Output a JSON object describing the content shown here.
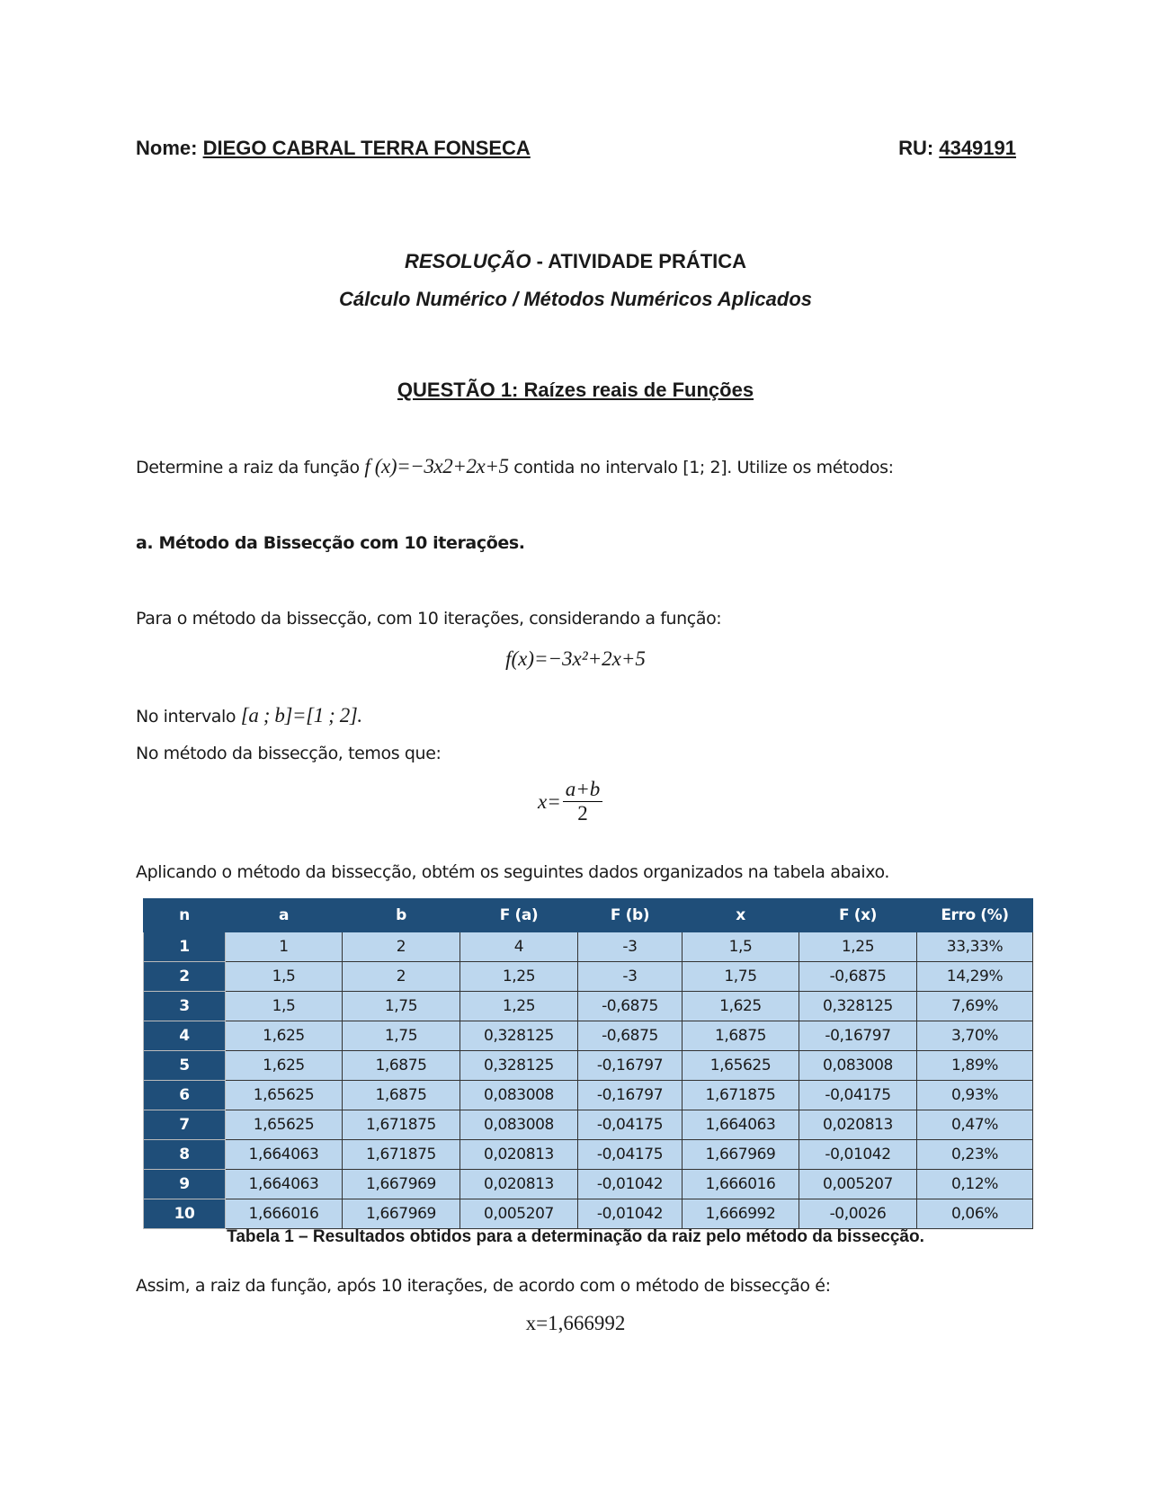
{
  "header": {
    "name_label": "Nome:",
    "name": "DIEGO CABRAL TERRA FONSECA",
    "ru_label": "RU:",
    "ru": "4349191"
  },
  "title": {
    "line1_italic": "RESOLUÇÃO",
    "line1_rest": " - ATIVIDADE PRÁTICA",
    "line2": "Cálculo Numérico / Métodos Numéricos Aplicados"
  },
  "question": "QUESTÃO 1: Raízes reais de Funções",
  "statement": {
    "before": "Determine a raiz da função",
    "formula": "f (x)=−3x2+2x+5",
    "after": "contida no intervalo [1; 2]. Utilize os métodos:"
  },
  "item_a": "a. Método da Bissecção com 10 iterações.",
  "p1": "Para o método da bissecção, com 10 iterações, considerando a função:",
  "formula_f": "f(x)=−3x²+2x+5",
  "p2_text": "No intervalo",
  "p2_math": "[a ; b]=[1 ; 2].",
  "p3": "No método da bissecção, temos que:",
  "formula_x": {
    "lhs": "x=",
    "num": "a+b",
    "den": "2"
  },
  "p4": "Aplicando o método da bissecção, obtém os seguintes dados organizados na tabela abaixo.",
  "table": {
    "headers": [
      "n",
      "a",
      "b",
      "F (a)",
      "F (b)",
      "x",
      "F (x)",
      "Erro (%)"
    ],
    "rows": [
      [
        "1",
        "1",
        "2",
        "4",
        "-3",
        "1,5",
        "1,25",
        "33,33%"
      ],
      [
        "2",
        "1,5",
        "2",
        "1,25",
        "-3",
        "1,75",
        "-0,6875",
        "14,29%"
      ],
      [
        "3",
        "1,5",
        "1,75",
        "1,25",
        "-0,6875",
        "1,625",
        "0,328125",
        "7,69%"
      ],
      [
        "4",
        "1,625",
        "1,75",
        "0,328125",
        "-0,6875",
        "1,6875",
        "-0,16797",
        "3,70%"
      ],
      [
        "5",
        "1,625",
        "1,6875",
        "0,328125",
        "-0,16797",
        "1,65625",
        "0,083008",
        "1,89%"
      ],
      [
        "6",
        "1,65625",
        "1,6875",
        "0,083008",
        "-0,16797",
        "1,671875",
        "-0,04175",
        "0,93%"
      ],
      [
        "7",
        "1,65625",
        "1,671875",
        "0,083008",
        "-0,04175",
        "1,664063",
        "0,020813",
        "0,47%"
      ],
      [
        "8",
        "1,664063",
        "1,671875",
        "0,020813",
        "-0,04175",
        "1,667969",
        "-0,01042",
        "0,23%"
      ],
      [
        "9",
        "1,664063",
        "1,667969",
        "0,020813",
        "-0,01042",
        "1,666016",
        "0,005207",
        "0,12%"
      ],
      [
        "10",
        "1,666016",
        "1,667969",
        "0,005207",
        "-0,01042",
        "1,666992",
        "-0,0026",
        "0,06%"
      ]
    ],
    "caption": "Tabela 1 – Resultados obtidos para a determinação da raiz pelo método da bissecção."
  },
  "p5": "Assim, a raiz da função, após 10 iterações, de acordo com o método de bissecção é:",
  "result": "x=1,666992",
  "colors": {
    "header_bg": "#1f4e79",
    "cell_bg": "#bdd7ee"
  }
}
